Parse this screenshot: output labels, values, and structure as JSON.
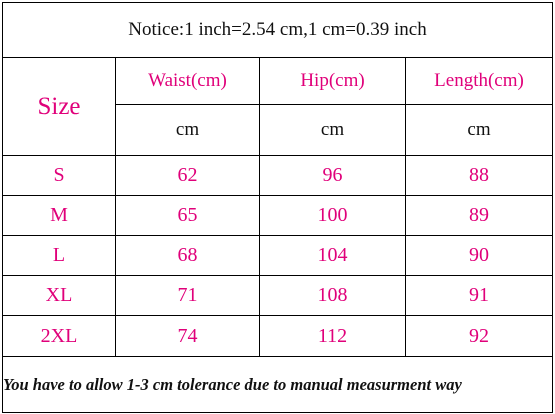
{
  "notice": "Notice:1 inch=2.54 cm,1 cm=0.39 inch",
  "size_header": "Size",
  "columns": [
    "Waist(cm)",
    "Hip(cm)",
    "Length(cm)"
  ],
  "units": [
    "cm",
    "cm",
    "cm"
  ],
  "rows": [
    {
      "size": "S",
      "waist": "62",
      "hip": "96",
      "length": "88"
    },
    {
      "size": "M",
      "waist": "65",
      "hip": "100",
      "length": "89"
    },
    {
      "size": "L",
      "waist": "68",
      "hip": "104",
      "length": "90"
    },
    {
      "size": "XL",
      "waist": "71",
      "hip": "108",
      "length": "91"
    },
    {
      "size": "2XL",
      "waist": "74",
      "hip": "112",
      "length": "92"
    }
  ],
  "footer": "You have to allow 1-3 cm tolerance due to manual measurment way",
  "colors": {
    "accent": "#e0007a",
    "text": "#111111",
    "border": "#000000"
  }
}
